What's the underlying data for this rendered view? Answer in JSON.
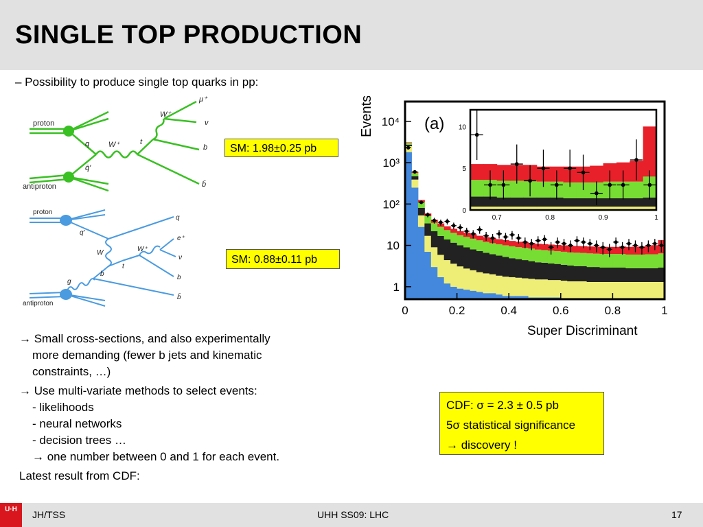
{
  "slide": {
    "title": "SINGLE TOP PRODUCTION",
    "intro": "– Possibility to produce single top quarks in pp:",
    "sm_box_1": "SM: 1.98±0.25 pb",
    "sm_box_2": "SM: 0.88±0.11 pb",
    "bullet_1_line_1": "→ Small cross-sections, and also experimentally",
    "bullet_1_line_2": "more demanding (fewer b jets and kinematic",
    "bullet_1_line_3": "constraints, …)",
    "bullet_2_line_1": "→ Use multi-variate methods to select events:",
    "bullet_2_item_1": "- likelihoods",
    "bullet_2_item_2": "- neural networks",
    "bullet_2_item_3": "- decision trees …",
    "bullet_2_item_4": "→ one number between 0 and 1 for each event.",
    "latest": "Latest result from CDF:",
    "cdf_line_1": "CDF: σ = 2.3 ± 0.5 pb",
    "cdf_line_2": "5σ statistical significance",
    "cdf_line_3": "→ discovery !"
  },
  "diagram_1": {
    "proton": "proton",
    "antiproton": "antiproton",
    "q": "q",
    "qbar": "q̄'",
    "w_plus": "W⁺",
    "w_plus_2": "W⁺",
    "t": "t",
    "mu": "μ⁺",
    "nu": "ν",
    "b": "b",
    "bbar": "b̄",
    "color": "#39c022"
  },
  "diagram_2": {
    "proton": "proton",
    "antiproton": "antiproton",
    "q_out": "q",
    "q_prime": "q'",
    "W": "W",
    "w_plus": "W⁺",
    "t": "t",
    "g": "g",
    "b_in": "b",
    "e": "e⁺",
    "nu": "ν",
    "b": "b",
    "bbar": "b̄",
    "color": "#4a9be0"
  },
  "figure": {
    "panel_label": "(a)",
    "ylabel": "Events",
    "xlabel": "Super Discriminant",
    "y_ticks": [
      "1",
      "10",
      "10²",
      "10³",
      "10⁴"
    ],
    "x_ticks": [
      "0",
      "0.2",
      "0.4",
      "0.6",
      "0.8",
      "1"
    ],
    "inset_y_ticks": [
      "0",
      "5",
      "10"
    ],
    "inset_x_ticks": [
      "0.7",
      "0.8",
      "0.9",
      "1"
    ],
    "colors": {
      "red": "#e8202a",
      "green": "#77dd33",
      "black": "#222222",
      "yellow": "#eeee77",
      "blue": "#4488dd"
    }
  },
  "chart_data": {
    "type": "bar",
    "stacked": true,
    "y_scale": "log",
    "xlim": [
      0,
      1
    ],
    "ylim": [
      0.5,
      30000
    ],
    "x_bins": [
      0.0,
      0.025,
      0.05,
      0.075,
      0.1,
      0.125,
      0.15,
      0.175,
      0.2,
      0.225,
      0.25,
      0.275,
      0.3,
      0.325,
      0.35,
      0.375,
      0.4,
      0.425,
      0.45,
      0.475,
      0.5,
      0.525,
      0.55,
      0.575,
      0.6,
      0.625,
      0.65,
      0.675,
      0.7,
      0.725,
      0.75,
      0.775,
      0.8,
      0.825,
      0.85,
      0.875,
      0.9,
      0.925,
      0.95,
      0.975
    ],
    "series": [
      {
        "name": "blue",
        "values": [
          1800,
          250,
          28,
          7,
          3,
          1.7,
          1.2,
          1,
          0.9,
          0.85,
          0.8,
          0.75,
          0.7,
          0.7,
          0.65,
          0.6,
          0.6,
          0.6,
          0.6,
          0.55,
          0.55,
          0.55,
          0.55,
          0.55,
          0.5,
          0.5,
          0.5,
          0.5,
          0.5,
          0.5,
          0.5,
          0.5,
          0.5,
          0.5,
          0.5,
          0.5,
          0.5,
          0.5,
          0.5,
          0.5
        ]
      },
      {
        "name": "yellow",
        "values": [
          700,
          140,
          25,
          10,
          6,
          4.2,
          3.2,
          2.6,
          2.2,
          1.9,
          1.7,
          1.5,
          1.4,
          1.3,
          1.2,
          1.15,
          1.1,
          1.05,
          1,
          1,
          0.95,
          0.95,
          0.9,
          0.9,
          0.9,
          0.85,
          0.85,
          0.85,
          0.8,
          0.8,
          0.8,
          0.8,
          0.8,
          0.8,
          0.8,
          0.8,
          0.8,
          0.8,
          0.8,
          0.8
        ]
      },
      {
        "name": "black",
        "values": [
          220,
          80,
          28,
          17,
          13,
          11,
          9.5,
          8,
          7,
          6.2,
          5.5,
          5,
          4.5,
          4.1,
          3.8,
          3.5,
          3.2,
          3,
          2.8,
          2.6,
          2.4,
          2.3,
          2.2,
          2.1,
          2,
          1.9,
          1.8,
          1.8,
          1.7,
          1.7,
          1.6,
          1.6,
          1.6,
          1.6,
          1.5,
          1.5,
          1.5,
          1.5,
          1.5,
          1.6
        ]
      },
      {
        "name": "green",
        "values": [
          280,
          90,
          30,
          17,
          13,
          11,
          9.5,
          8.5,
          7.5,
          7,
          6.5,
          6,
          5.5,
          5.2,
          5,
          4.8,
          4.6,
          4.4,
          4.3,
          4.2,
          4,
          3.9,
          3.8,
          3.7,
          3.6,
          3.5,
          3.5,
          3.4,
          3.4,
          3.3,
          3.3,
          3.3,
          3.3,
          3.3,
          3.2,
          3.2,
          3.2,
          3.3,
          3.3,
          3.5
        ]
      },
      {
        "name": "red",
        "values": [
          100,
          40,
          14,
          8,
          6.5,
          6,
          5.5,
          5,
          4.5,
          4.3,
          4,
          3.8,
          3.7,
          3.6,
          3.5,
          3.4,
          3.3,
          3.2,
          3.2,
          3.1,
          3,
          3,
          3,
          3,
          3,
          3,
          3,
          3,
          3,
          3,
          3,
          3,
          3,
          3.2,
          3.2,
          3.3,
          3.4,
          3.6,
          4,
          7
        ]
      }
    ],
    "data_points": {
      "x": [
        0.0125,
        0.0375,
        0.0625,
        0.0875,
        0.1125,
        0.1375,
        0.1625,
        0.1875,
        0.2125,
        0.2375,
        0.2625,
        0.2875,
        0.3125,
        0.3375,
        0.3625,
        0.3875,
        0.4125,
        0.4375,
        0.4625,
        0.4875,
        0.5125,
        0.5375,
        0.5625,
        0.5875,
        0.6125,
        0.6375,
        0.6625,
        0.6875,
        0.7125,
        0.7375,
        0.7625,
        0.7875,
        0.8125,
        0.8375,
        0.8625,
        0.8875,
        0.9125,
        0.9375,
        0.9625,
        0.9875
      ],
      "y": [
        2300,
        600,
        110,
        55,
        40,
        36,
        38,
        30,
        27,
        22,
        19,
        24,
        17,
        15,
        19,
        16,
        18,
        15,
        12,
        11,
        13,
        14,
        9,
        12,
        11,
        10,
        13,
        12,
        11,
        10,
        9,
        8,
        12,
        9,
        11,
        10,
        9,
        10,
        11,
        10
      ]
    },
    "inset": {
      "xlim": [
        0.65,
        1
      ],
      "ylim": [
        0,
        12
      ],
      "x_bins": [
        0.65,
        0.675,
        0.7,
        0.725,
        0.75,
        0.775,
        0.8,
        0.825,
        0.85,
        0.875,
        0.9,
        0.925,
        0.95,
        0.975
      ],
      "blue_yellow": [
        0.4,
        0.4,
        0.4,
        0.4,
        0.4,
        0.4,
        0.4,
        0.4,
        0.4,
        0.4,
        0.4,
        0.4,
        0.4,
        0.4
      ],
      "black": [
        1.2,
        1.2,
        1.1,
        1.1,
        1.1,
        1.1,
        1.1,
        1.0,
        1.0,
        1.0,
        1.0,
        1.0,
        1.0,
        1.1
      ],
      "green": [
        2.0,
        2.0,
        2.0,
        2.0,
        2.0,
        1.9,
        1.9,
        1.9,
        1.9,
        1.9,
        2.0,
        2.0,
        2.0,
        2.5
      ],
      "red": [
        1.9,
        1.9,
        1.9,
        1.9,
        1.9,
        1.8,
        1.8,
        1.9,
        1.9,
        2.0,
        2.2,
        2.3,
        2.5,
        6.0
      ],
      "points_x": [
        0.6625,
        0.6875,
        0.7125,
        0.7375,
        0.7625,
        0.7875,
        0.8125,
        0.8375,
        0.8625,
        0.8875,
        0.9125,
        0.9375,
        0.9625,
        0.9875
      ],
      "points_y": [
        9,
        3,
        3,
        5.5,
        3.5,
        5,
        3,
        5,
        4.5,
        2,
        3,
        3,
        6,
        3
      ]
    }
  },
  "footer": {
    "left": "JH/TSS",
    "center": "UHH SS09: LHC",
    "page": "17",
    "logo": "U·H"
  }
}
